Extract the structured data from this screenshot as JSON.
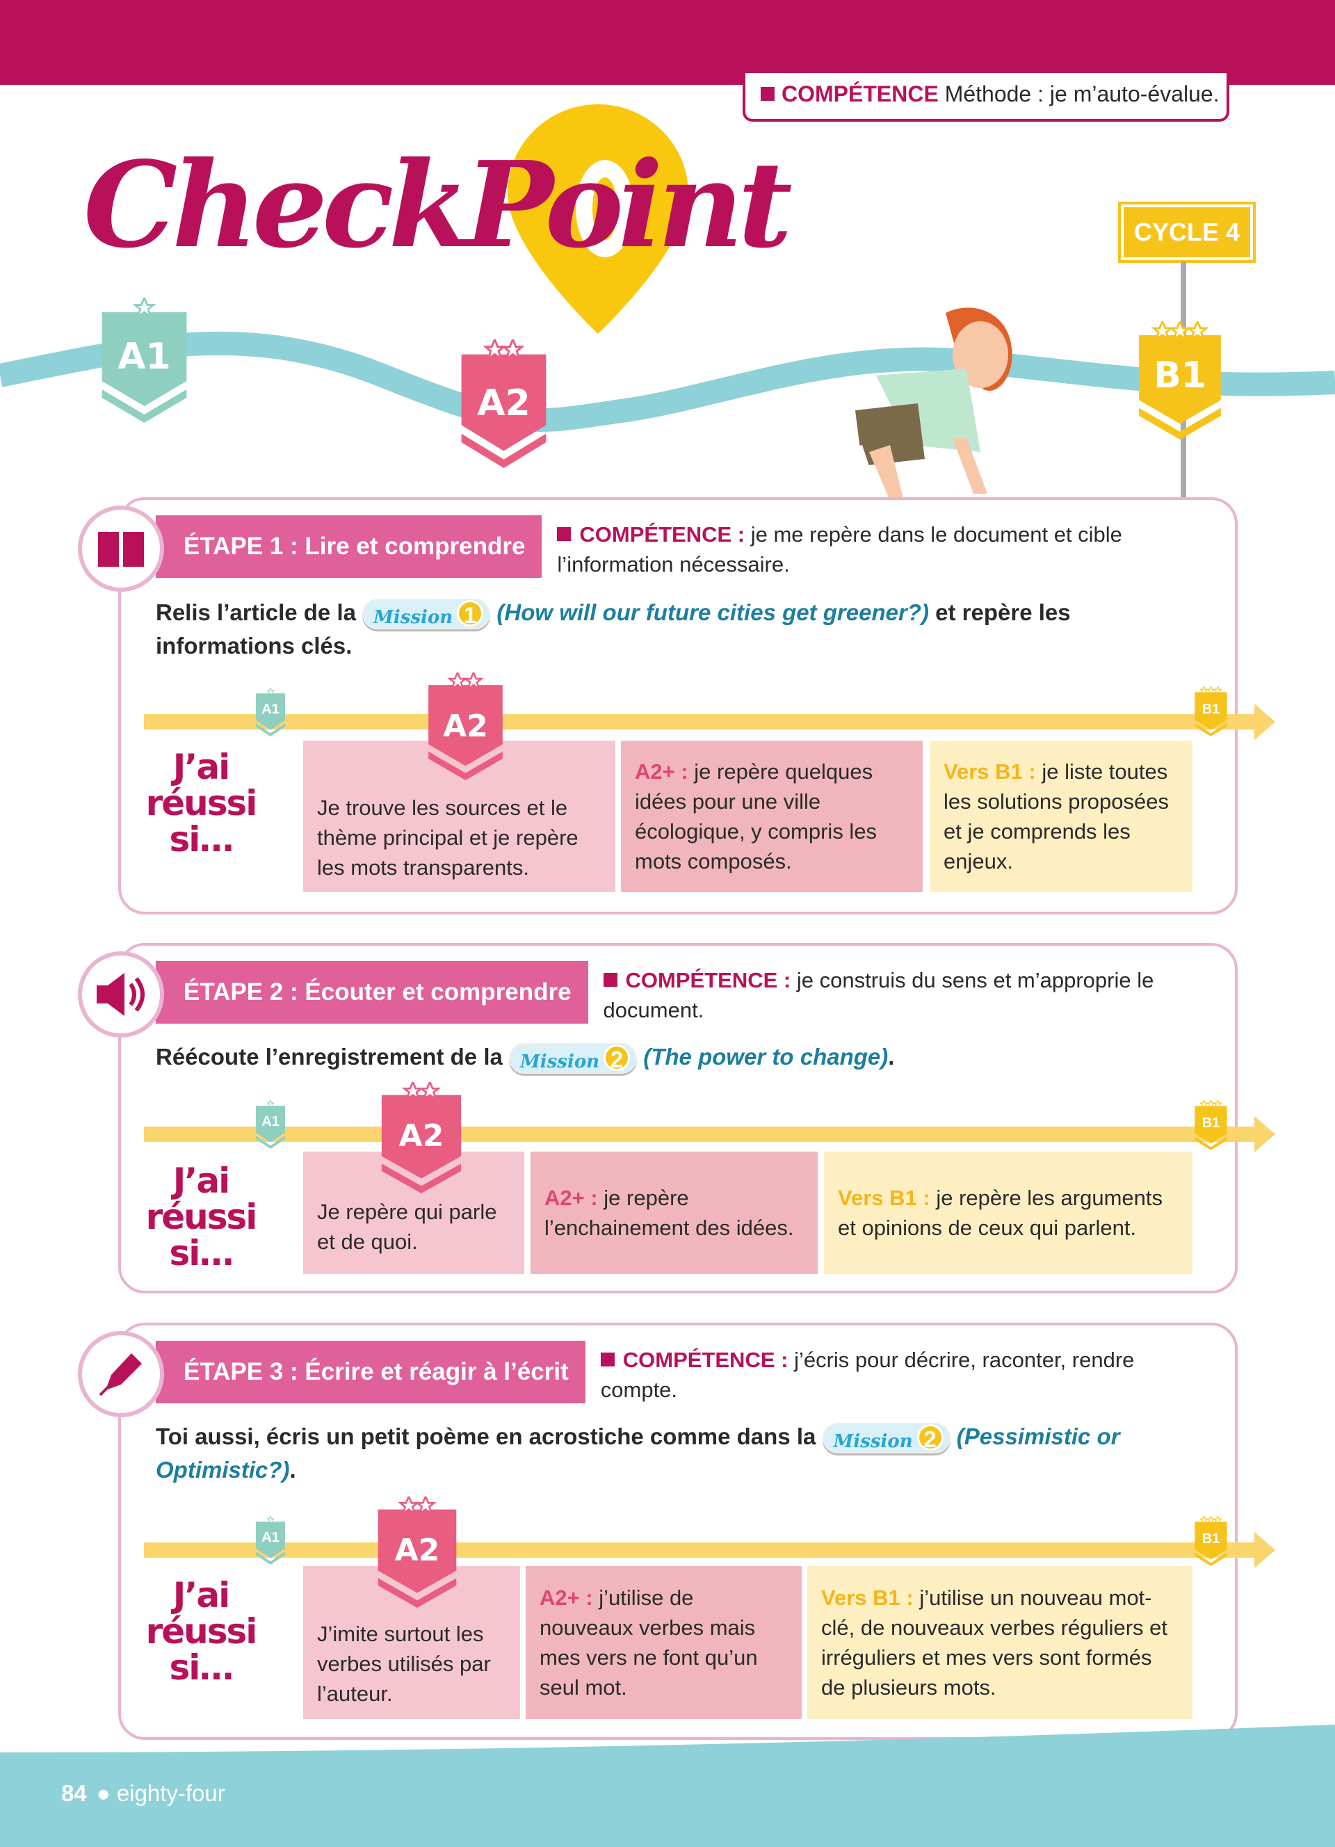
{
  "header": {
    "competence_label": "COMPÉTENCE",
    "competence_text": "Méthode : je m’auto-évalue."
  },
  "title": "CheckPoint",
  "cycle_sign": "CYCLE 4",
  "levels": {
    "a1": "A1",
    "a2": "A2",
    "b1": "B1"
  },
  "colors": {
    "brand": "#b8115a",
    "a1": "#8fcfc0",
    "a2": "#e85d80",
    "b1": "#f6c31a",
    "teal": "#8ed1d8",
    "bar": "#fad46c"
  },
  "jai_reussi": [
    "J’ai",
    "réussi",
    "si…"
  ],
  "sections": [
    {
      "icon": "book-icon",
      "etape": "ÉTAPE 1 : Lire et comprendre",
      "competence_label": "COMPÉTENCE :",
      "competence_text": "je me repère dans le document et cible l’information nécessaire.",
      "instr_before": "Relis l’article de la",
      "mission_label": "Mission",
      "mission_number": "1",
      "instr_ref": "(How will our future cities get greener?)",
      "instr_after": "et repère les informations clés.",
      "cards": [
        {
          "key": "",
          "text": "Je trouve les sources et le thème principal et je repère les mots transparents."
        },
        {
          "key": "A2+ :",
          "text": "je repère quelques idées pour une ville écologique, y compris les mots composés."
        },
        {
          "key": "Vers B1 :",
          "text": "je liste toutes les solutions proposées et je comprends les enjeux."
        }
      ]
    },
    {
      "icon": "speaker-icon",
      "etape": "ÉTAPE 2 : Écouter et comprendre",
      "competence_label": "COMPÉTENCE :",
      "competence_text": "je construis du sens et m’approprie le document.",
      "instr_before": "Réécoute l’enregistrement de la",
      "mission_label": "Mission",
      "mission_number": "2",
      "instr_ref": "(The power to change)",
      "instr_after": ".",
      "cards": [
        {
          "key": "",
          "text": "Je repère qui parle et de quoi."
        },
        {
          "key": "A2+ :",
          "text": "je repère l’enchainement des idées."
        },
        {
          "key": "Vers B1 :",
          "text": "je repère les arguments et opinions de ceux qui parlent."
        }
      ]
    },
    {
      "icon": "pen-nib-icon",
      "etape": "ÉTAPE 3 : Écrire et réagir à l’écrit",
      "competence_label": "COMPÉTENCE :",
      "competence_text": "j’écris pour décrire, raconter, rendre compte.",
      "instr_before": "Toi aussi, écris un petit poème en acrostiche comme dans la",
      "mission_label": "Mission",
      "mission_number": "2",
      "instr_ref": "(Pessimistic or Optimistic?)",
      "instr_after": ".",
      "cards": [
        {
          "key": "",
          "text": "J’imite surtout les verbes utilisés par l’auteur."
        },
        {
          "key": "A2+ :",
          "text": "j’utilise de nouveaux verbes mais mes vers ne font qu’un seul mot."
        },
        {
          "key": "Vers B1 :",
          "text": "j’utilise un nouveau mot-clé, de nouveaux verbes réguliers et irréguliers et mes vers sont formés de plusieurs mots."
        }
      ]
    }
  ],
  "footer": {
    "page_number": "84",
    "page_words": "eighty-four"
  }
}
